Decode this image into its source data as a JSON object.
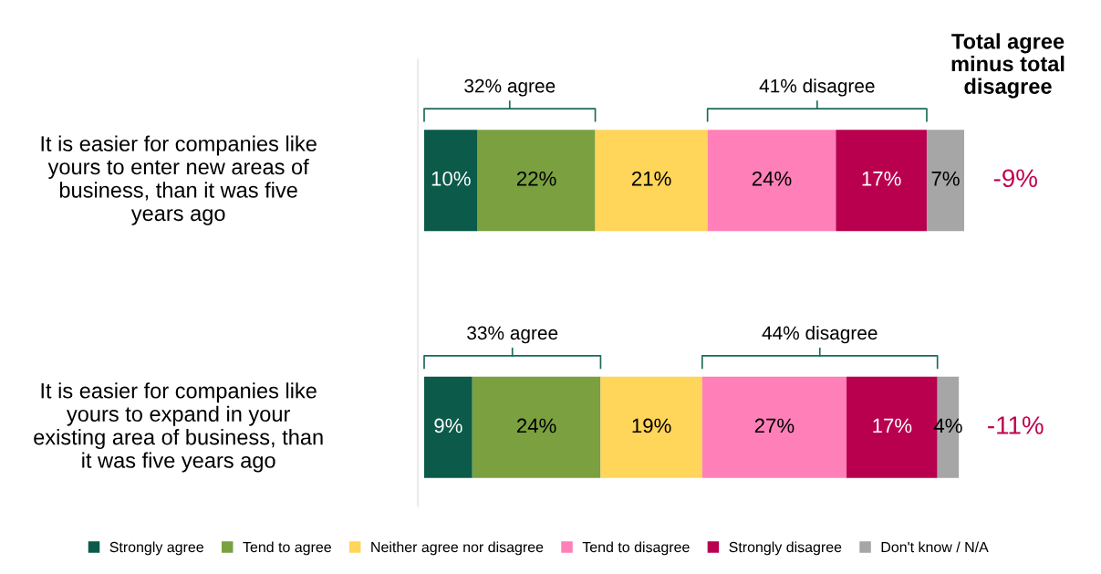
{
  "chart_data": {
    "type": "bar",
    "orientation": "horizontal",
    "stacked": true,
    "legend": "bottom",
    "grid": false,
    "tick_labels": "y",
    "xlim": [
      0,
      101
    ],
    "categories": [
      "It is easier for companies like yours to enter new areas of business, than it was five years ago",
      "It is easier for companies like yours to expand in your existing area of business, than it was five years ago"
    ],
    "series": [
      {
        "name": "Strongly agree",
        "color": "#0b5a4a",
        "values": [
          10,
          9
        ],
        "value_labels": [
          "10%",
          "9%"
        ]
      },
      {
        "name": "Tend to agree",
        "color": "#7aa040",
        "values": [
          22,
          24
        ],
        "value_labels": [
          "22%",
          "24%"
        ]
      },
      {
        "name": "Neither agree nor disagree",
        "color": "#ffd55a",
        "values": [
          21,
          19
        ],
        "value_labels": [
          "21%",
          "19%"
        ]
      },
      {
        "name": "Tend to disagree",
        "color": "#ff80b8",
        "values": [
          24,
          27
        ],
        "value_labels": [
          "24%",
          "27%"
        ]
      },
      {
        "name": "Strongly disagree",
        "color": "#b8004e",
        "values": [
          17,
          17
        ],
        "value_labels": [
          "17%",
          "17%"
        ]
      },
      {
        "name": "Don't know / N/A",
        "color": "#a6a6a6",
        "values": [
          7,
          4
        ],
        "value_labels": [
          "7%",
          "4%"
        ]
      }
    ],
    "annotations": [
      "32% agree",
      "41% disagree",
      "-9%",
      "33% agree",
      "44% disagree",
      "-11%",
      "Total agree minus total disagree"
    ]
  }
}
